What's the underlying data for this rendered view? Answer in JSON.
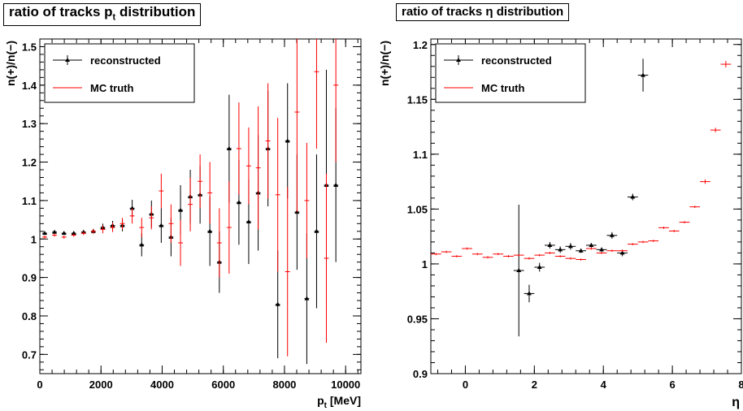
{
  "chart_data": [
    {
      "type": "scatter",
      "title": "ratio of tracks p",
      "title_sub": "t",
      "title_tail": " distribution",
      "xlabel": "p",
      "xlabel_sub": "t",
      "xlabel_tail": " [MeV]",
      "ylabel": "n(+)/n(−)",
      "xlim": [
        0,
        10500
      ],
      "ylim": [
        0.65,
        1.52
      ],
      "xticks": [
        0,
        2000,
        4000,
        6000,
        8000,
        10000
      ],
      "yticks": [
        0.7,
        0.8,
        0.9,
        1,
        1.1,
        1.2,
        1.3,
        1.4,
        1.5
      ],
      "ytick_labels": [
        "0.7",
        "0.8",
        "0.9",
        "1",
        "1.1",
        "1.2",
        "1.3",
        "1.4",
        "1.5"
      ],
      "legend": [
        "reconstructed",
        "MC truth"
      ],
      "legend_position": "top-left",
      "series": [
        {
          "name": "reconstructed",
          "color": "#000000",
          "marker": "triangle",
          "x": [
            160,
            480,
            790,
            1110,
            1430,
            1750,
            2060,
            2380,
            2700,
            3020,
            3330,
            3650,
            3970,
            4290,
            4600,
            4920,
            5240,
            5560,
            5870,
            6190,
            6510,
            6830,
            7140,
            7460,
            7780,
            8100,
            8410,
            8730,
            9050,
            9370,
            9680
          ],
          "y": [
            1.015,
            1.018,
            1.015,
            1.015,
            1.018,
            1.02,
            1.03,
            1.035,
            1.035,
            1.08,
            0.985,
            1.065,
            1.035,
            1.005,
            1.075,
            1.11,
            1.115,
            1.02,
            0.94,
            1.235,
            1.095,
            1.045,
            1.12,
            1.235,
            0.83,
            1.255,
            1.07,
            0.845,
            1.02,
            1.14,
            1.14
          ],
          "err": [
            0.004,
            0.004,
            0.004,
            0.004,
            0.005,
            0.006,
            0.01,
            0.012,
            0.015,
            0.022,
            0.03,
            0.035,
            0.045,
            0.05,
            0.065,
            0.07,
            0.075,
            0.09,
            0.08,
            0.14,
            0.11,
            0.11,
            0.15,
            0.15,
            0.14,
            0.15,
            0.15,
            0.17,
            0.2,
            0.3,
            0.2
          ]
        },
        {
          "name": "MC truth",
          "color": "#ff0000",
          "marker": "cross",
          "x": [
            160,
            480,
            790,
            1110,
            1430,
            1750,
            2060,
            2380,
            2700,
            3020,
            3330,
            3650,
            3970,
            4290,
            4600,
            4920,
            5240,
            5560,
            5870,
            6190,
            6510,
            6830,
            7140,
            7460,
            7780,
            8100,
            8410,
            8730,
            9050,
            9370,
            9680
          ],
          "y": [
            1.005,
            1.01,
            1.005,
            1.01,
            1.015,
            1.02,
            1.025,
            1.03,
            1.04,
            1.06,
            1.03,
            1.055,
            1.125,
            1.04,
            0.99,
            1.09,
            1.15,
            1.12,
            0.99,
            1.03,
            1.235,
            1.19,
            1.185,
            1.255,
            1.115,
            0.915,
            1.33,
            1.1,
            1.435,
            0.95,
            1.4
          ],
          "err": [
            0.004,
            0.004,
            0.004,
            0.004,
            0.005,
            0.006,
            0.01,
            0.012,
            0.015,
            0.02,
            0.025,
            0.03,
            0.045,
            0.05,
            0.06,
            0.07,
            0.07,
            0.08,
            0.09,
            0.12,
            0.12,
            0.1,
            0.16,
            0.15,
            0.2,
            0.22,
            0.26,
            0.15,
            0.2,
            0.22,
            0.2
          ]
        }
      ]
    },
    {
      "type": "scatter",
      "title": "ratio of tracks η distribution",
      "xlabel": "η",
      "ylabel": "n(+)/n(−)",
      "xlim": [
        -1,
        8
      ],
      "ylim": [
        0.9,
        1.205
      ],
      "xticks": [
        0,
        2,
        4,
        6,
        8
      ],
      "yticks": [
        0.9,
        0.95,
        1,
        1.05,
        1.1,
        1.15,
        1.2
      ],
      "ytick_labels": [
        "0.9",
        "0.95",
        "1",
        "1.05",
        "1.1",
        "1.15",
        "1.2"
      ],
      "legend": [
        "reconstructed",
        "MC truth"
      ],
      "legend_position": "top-left",
      "series": [
        {
          "name": "reconstructed",
          "color": "#000000",
          "marker": "triangle",
          "x": [
            1.55,
            1.85,
            2.15,
            2.45,
            2.75,
            3.05,
            3.35,
            3.65,
            3.95,
            4.25,
            4.55,
            4.85,
            5.15
          ],
          "y": [
            0.994,
            0.973,
            0.997,
            1.017,
            1.013,
            1.016,
            1.012,
            1.017,
            1.013,
            1.026,
            1.01,
            1.061,
            1.172
          ],
          "err": [
            0.06,
            0.008,
            0.004,
            0.003,
            0.003,
            0.003,
            0.002,
            0.002,
            0.002,
            0.003,
            0.003,
            0.003,
            0.015
          ]
        },
        {
          "name": "MC truth",
          "color": "#ff0000",
          "marker": "cross",
          "x": [
            -0.85,
            -0.55,
            -0.25,
            0.05,
            0.35,
            0.65,
            0.95,
            1.25,
            1.55,
            1.85,
            2.15,
            2.45,
            2.75,
            3.05,
            3.35,
            3.65,
            3.95,
            4.25,
            4.55,
            4.85,
            5.15,
            5.45,
            5.75,
            6.05,
            6.35,
            6.65,
            6.95,
            7.25,
            7.55
          ],
          "y": [
            1.009,
            1.011,
            1.007,
            1.014,
            1.009,
            1.006,
            1.009,
            1.007,
            1.008,
            1.005,
            1.008,
            1.01,
            1.007,
            1.005,
            1.004,
            1.014,
            1.01,
            1.012,
            1.012,
            1.018,
            1.02,
            1.021,
            1.033,
            1.03,
            1.038,
            1.052,
            1.075,
            1.122,
            1.182
          ],
          "err": [
            0.001,
            0.001,
            0.001,
            0.001,
            0.001,
            0.001,
            0.001,
            0.001,
            0.001,
            0.001,
            0.001,
            0.001,
            0.001,
            0.001,
            0.001,
            0.001,
            0.001,
            0.001,
            0.001,
            0.001,
            0.001,
            0.001,
            0.001,
            0.001,
            0.001,
            0.001,
            0.002,
            0.002,
            0.003
          ]
        }
      ]
    }
  ]
}
